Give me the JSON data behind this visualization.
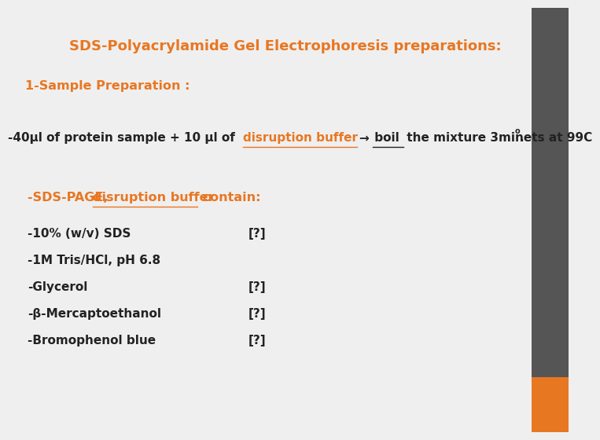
{
  "title": "SDS-Polyacrylamide Gel Electrophoresis preparations:",
  "title_color": "#E87722",
  "title_fontsize": 13,
  "bg_color_main": "#EFEFEF",
  "bg_color_sidebar_top": "#555555",
  "bg_color_sidebar_bottom": "#E87722",
  "orange_color": "#E87722",
  "black_color": "#222222",
  "section1_label": "1-Sample Preparation :",
  "line1_prefix": "-40µl of protein sample + 10 μl of ",
  "line1_link": "disruption buffer",
  "line1_arrow": "→",
  "line1_bold_word": " boil",
  "line1_suffix": " the mixture 3minets at 99C",
  "line1_superscript": "o",
  "line1_period": ".",
  "section2_prefix": "-SDS-PAGE, ",
  "section2_link": "disruption buffer",
  "section2_suffix": " contain:",
  "items": [
    [
      "-10% (w/v) SDS",
      "[?]"
    ],
    [
      "-1M Tris/HCl, pH 6.8",
      ""
    ],
    [
      "-Glycerol",
      "[?]"
    ],
    [
      "-β-Mercaptoethanol",
      "[?]"
    ],
    [
      "-Bromophenol blue",
      "[?]"
    ]
  ],
  "fontsize_body": 11,
  "fontsize_section": 11.5,
  "fontsize_title": 13
}
